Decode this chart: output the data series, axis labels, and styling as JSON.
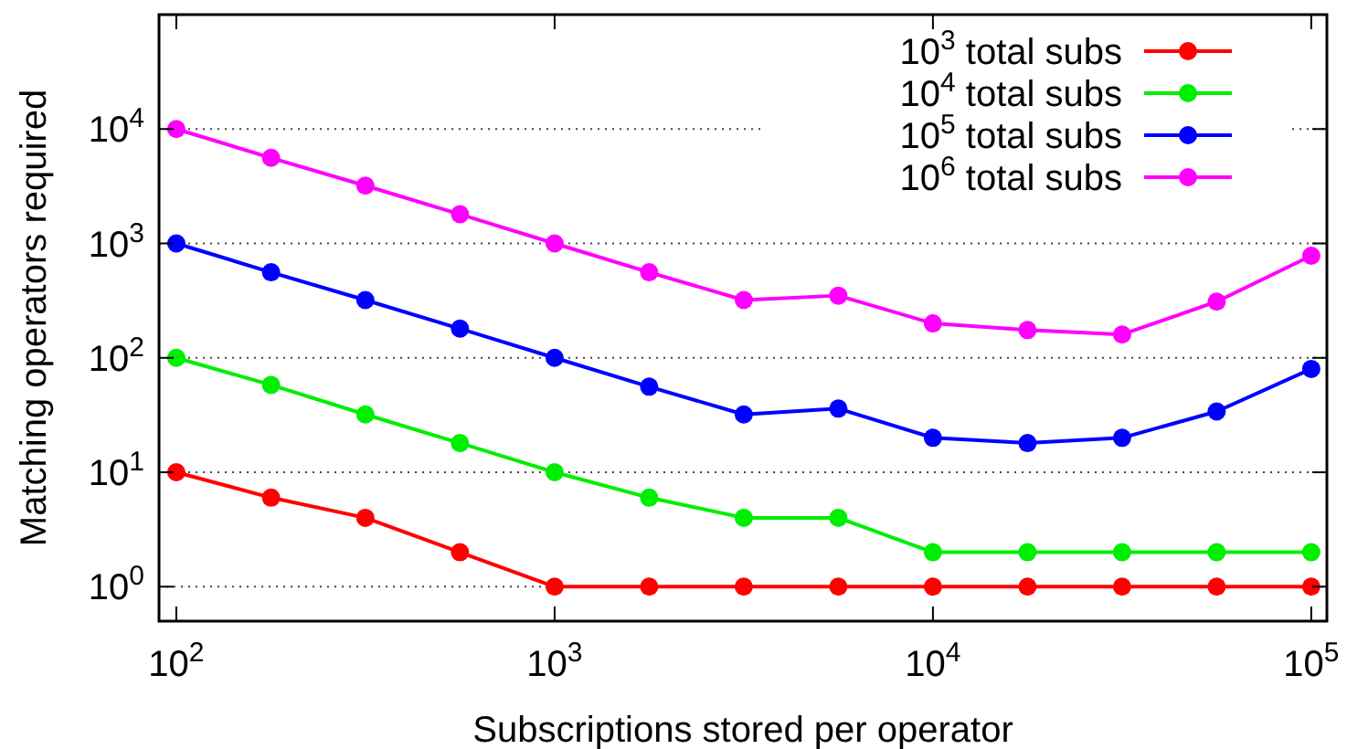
{
  "chart_data": {
    "type": "line",
    "xlabel": "Subscriptions stored per operator",
    "ylabel": "Matching operators required",
    "log": "xy",
    "grid": "y",
    "legend": "top right",
    "marker": "circle",
    "line_style": "solid",
    "x": [
      100,
      178,
      316,
      562,
      1000,
      1778,
      3162,
      5623,
      10000,
      17783,
      31623,
      56234,
      100000
    ],
    "xlim": [
      90,
      110000
    ],
    "ylim": [
      0.5,
      100000
    ],
    "xticks": [
      {
        "value": 100,
        "label": "10$^{2}$"
      },
      {
        "value": 1000,
        "label": "10$^{3}$"
      },
      {
        "value": 10000,
        "label": "10$^{4}$"
      },
      {
        "value": 100000,
        "label": "10$^{5}$"
      }
    ],
    "yticks": [
      {
        "value": 1,
        "label": "10$^{0}$"
      },
      {
        "value": 10,
        "label": "10$^{1}$"
      },
      {
        "value": 100,
        "label": "10$^{2}$"
      },
      {
        "value": 1000,
        "label": "10$^{3}$"
      },
      {
        "value": 10000,
        "label": "10$^{4}$"
      }
    ],
    "series": [
      {
        "name": "10$^{3}$ total subs",
        "color": "#ff0000",
        "values": [
          10,
          6,
          4,
          2,
          1,
          1,
          1,
          1,
          1,
          1,
          1,
          1,
          1
        ]
      },
      {
        "name": "10$^{4}$ total subs",
        "color": "#00ee00",
        "values": [
          100,
          58,
          32,
          18,
          10,
          6,
          4,
          4,
          2,
          2,
          2,
          2,
          2
        ]
      },
      {
        "name": "10$^{5}$ total subs",
        "color": "#0000ff",
        "values": [
          1000,
          560,
          320,
          180,
          100,
          56,
          32,
          36,
          20,
          18,
          20,
          34,
          80
        ]
      },
      {
        "name": "10$^{6}$ total subs",
        "color": "#ff00ff",
        "values": [
          10000,
          5600,
          3200,
          1800,
          1000,
          560,
          320,
          350,
          200,
          175,
          160,
          310,
          780
        ]
      }
    ]
  }
}
